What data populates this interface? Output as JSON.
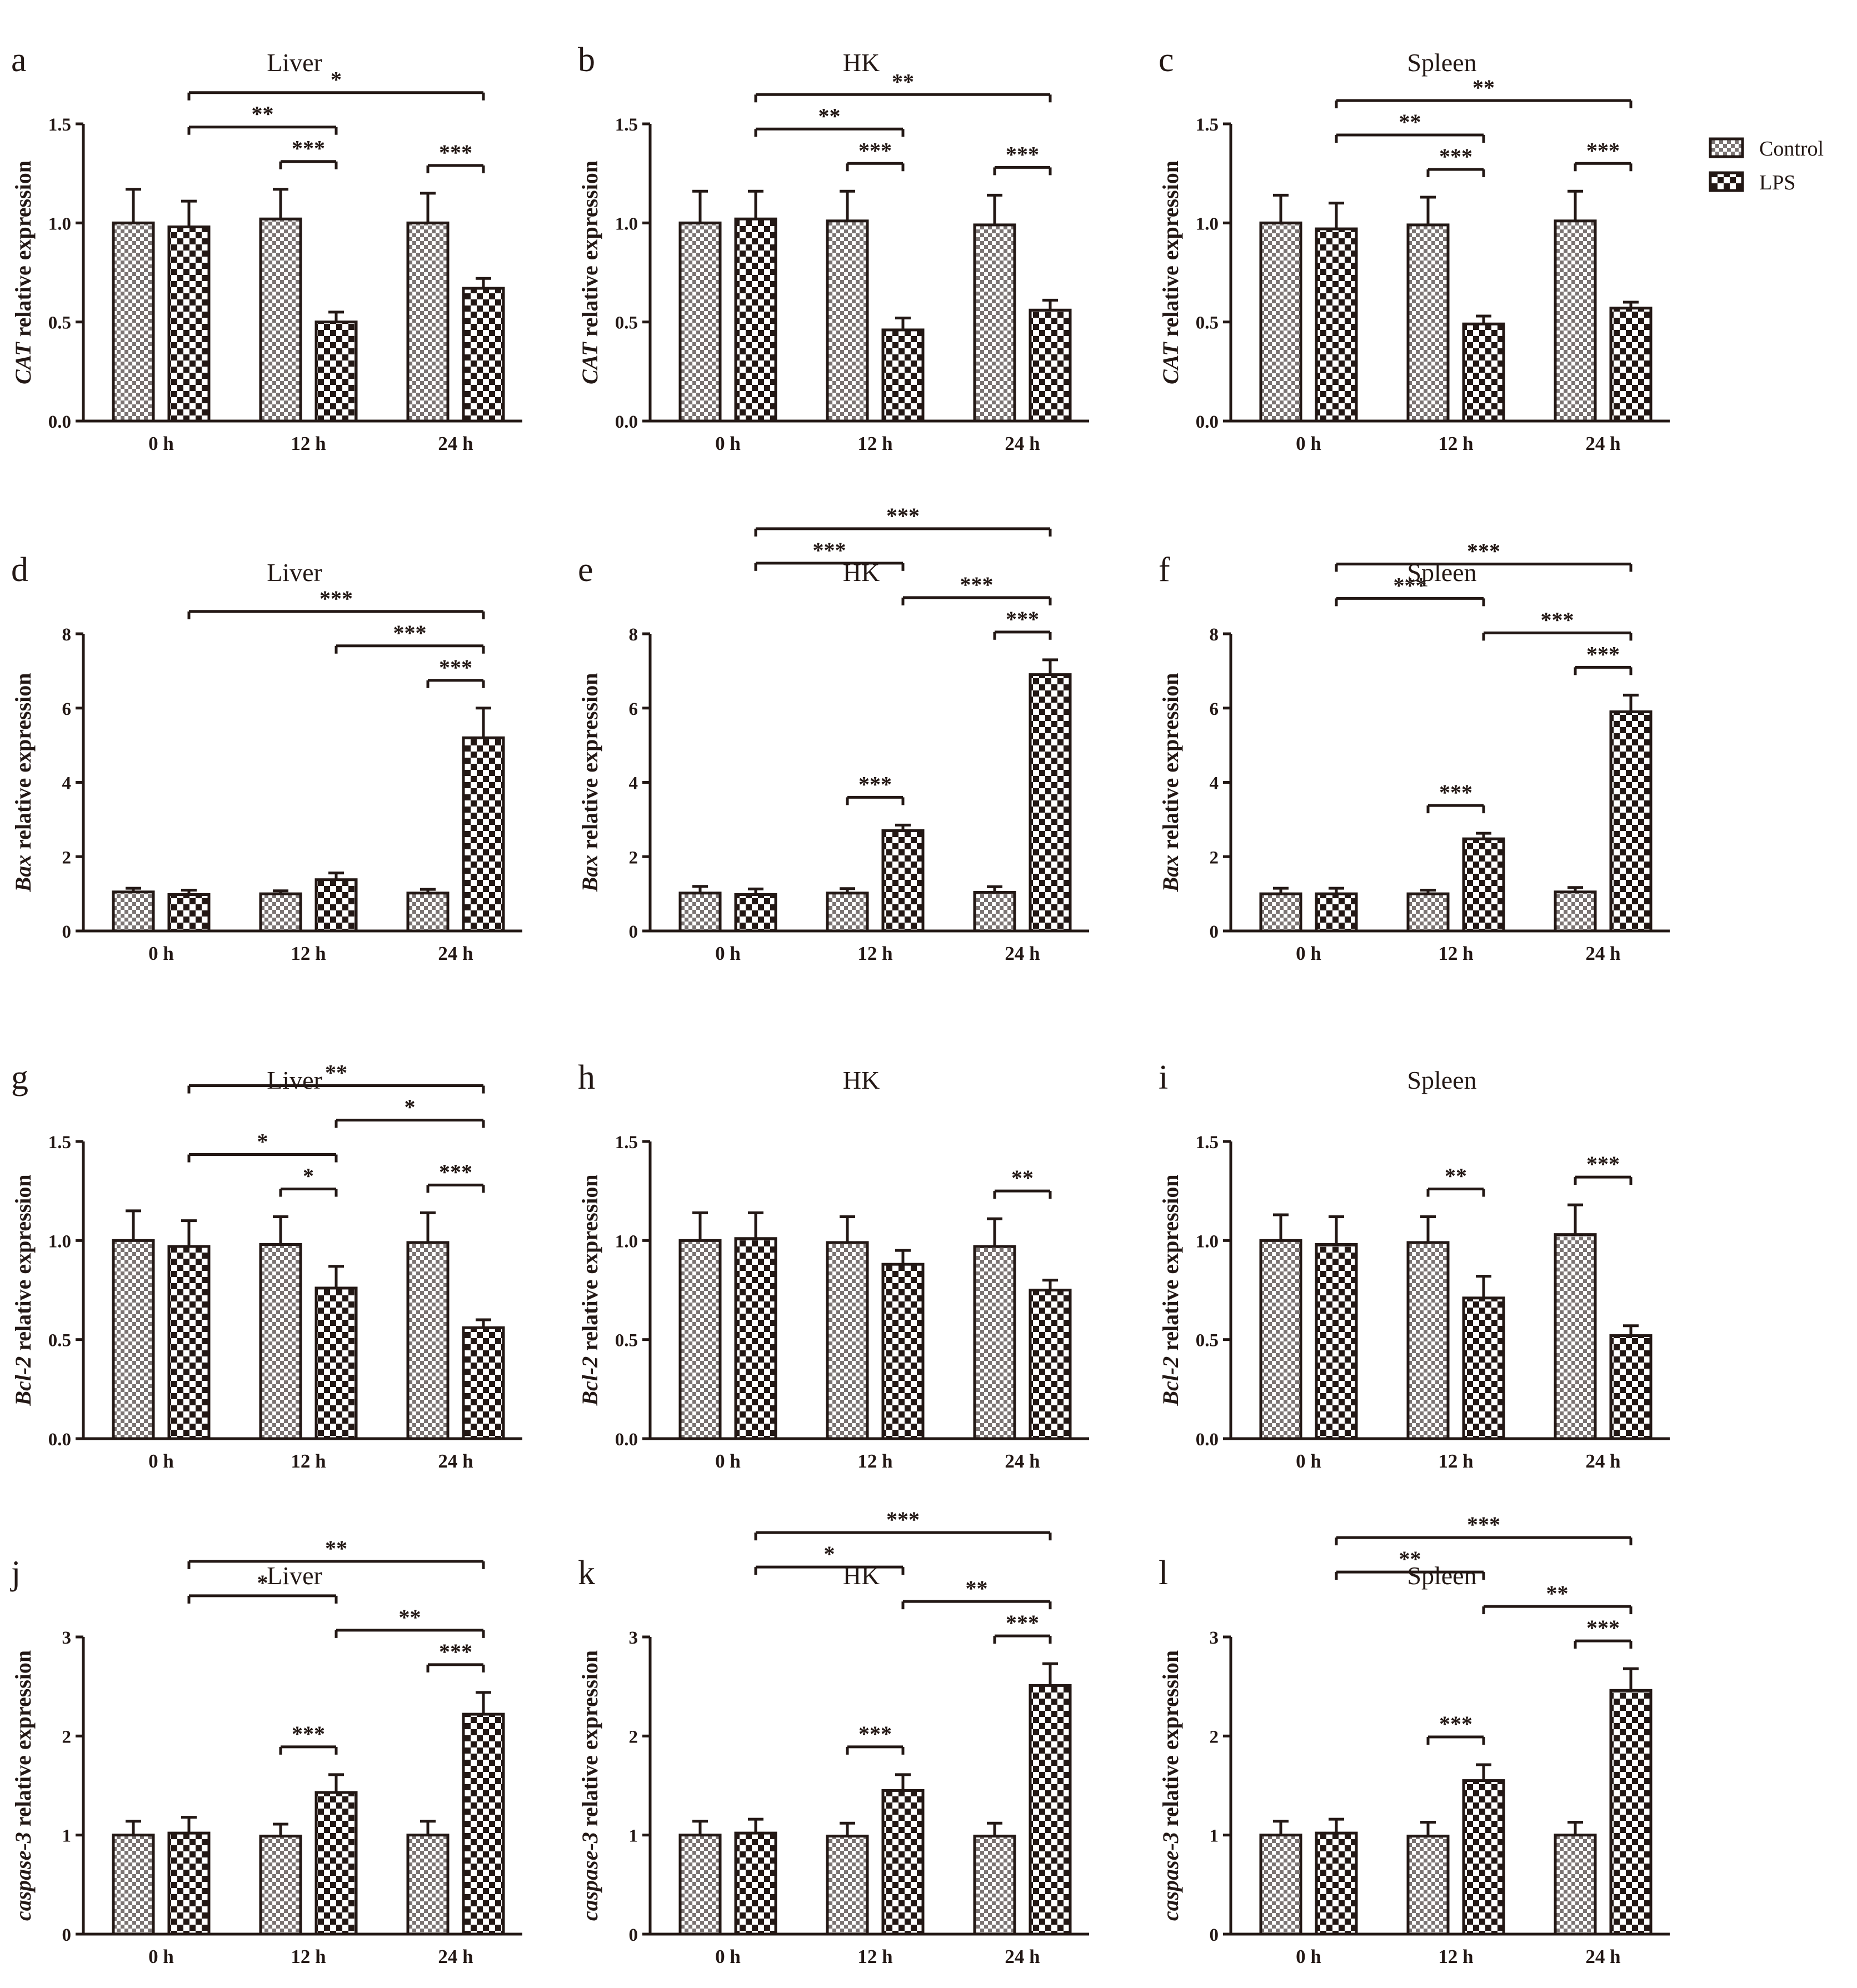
{
  "legend": {
    "control_label": "Control",
    "lps_label": "LPS"
  },
  "colors": {
    "ink": "#231815",
    "bar_fill_base": "#ffffff"
  },
  "chart_data": [
    {
      "letter": "a",
      "type": "bar",
      "title": "Liver",
      "ylabel_gene": "CAT",
      "ylabel_rest": " relative expression",
      "categories": [
        "0 h",
        "12 h",
        "24 h"
      ],
      "ylim": [
        0,
        1.5
      ],
      "yticks": [
        "0.0",
        "0.5",
        "1.0",
        "1.5"
      ],
      "series": [
        {
          "name": "Control",
          "values": [
            1.0,
            1.02,
            1.0
          ],
          "errors": [
            0.17,
            0.15,
            0.15
          ]
        },
        {
          "name": "LPS",
          "values": [
            0.98,
            0.5,
            0.67
          ],
          "errors": [
            0.13,
            0.05,
            0.05
          ]
        }
      ],
      "significance": [
        {
          "from": [
            0,
            1
          ],
          "to": [
            2,
            1
          ],
          "label": "*"
        },
        {
          "from": [
            0,
            1
          ],
          "to": [
            1,
            1
          ],
          "label": "**"
        },
        {
          "from": [
            1,
            0
          ],
          "to": [
            1,
            1
          ],
          "label": "***"
        },
        {
          "from": [
            2,
            0
          ],
          "to": [
            2,
            1
          ],
          "label": "***"
        }
      ]
    },
    {
      "letter": "b",
      "type": "bar",
      "title": "HK",
      "ylabel_gene": "CAT",
      "ylabel_rest": " relative expression",
      "categories": [
        "0 h",
        "12 h",
        "24 h"
      ],
      "ylim": [
        0,
        1.5
      ],
      "yticks": [
        "0.0",
        "0.5",
        "1.0",
        "1.5"
      ],
      "series": [
        {
          "name": "Control",
          "values": [
            1.0,
            1.01,
            0.99
          ],
          "errors": [
            0.16,
            0.15,
            0.15
          ]
        },
        {
          "name": "LPS",
          "values": [
            1.02,
            0.46,
            0.56
          ],
          "errors": [
            0.14,
            0.06,
            0.05
          ]
        }
      ],
      "significance": [
        {
          "from": [
            0,
            1
          ],
          "to": [
            2,
            1
          ],
          "label": "**"
        },
        {
          "from": [
            0,
            1
          ],
          "to": [
            1,
            1
          ],
          "label": "**"
        },
        {
          "from": [
            1,
            0
          ],
          "to": [
            1,
            1
          ],
          "label": "***"
        },
        {
          "from": [
            2,
            0
          ],
          "to": [
            2,
            1
          ],
          "label": "***"
        }
      ]
    },
    {
      "letter": "c",
      "type": "bar",
      "title": "Spleen",
      "ylabel_gene": "CAT",
      "ylabel_rest": " relative expression",
      "categories": [
        "0 h",
        "12 h",
        "24 h"
      ],
      "ylim": [
        0,
        1.5
      ],
      "yticks": [
        "0.0",
        "0.5",
        "1.0",
        "1.5"
      ],
      "series": [
        {
          "name": "Control",
          "values": [
            1.0,
            0.99,
            1.01
          ],
          "errors": [
            0.14,
            0.14,
            0.15
          ]
        },
        {
          "name": "LPS",
          "values": [
            0.97,
            0.49,
            0.57
          ],
          "errors": [
            0.13,
            0.04,
            0.03
          ]
        }
      ],
      "significance": [
        {
          "from": [
            0,
            1
          ],
          "to": [
            2,
            1
          ],
          "label": "**"
        },
        {
          "from": [
            0,
            1
          ],
          "to": [
            1,
            1
          ],
          "label": "**"
        },
        {
          "from": [
            1,
            0
          ],
          "to": [
            1,
            1
          ],
          "label": "***"
        },
        {
          "from": [
            2,
            0
          ],
          "to": [
            2,
            1
          ],
          "label": "***"
        }
      ]
    },
    {
      "letter": "d",
      "type": "bar",
      "title": "Liver",
      "ylabel_gene": "Bax",
      "ylabel_rest": " relative expression",
      "categories": [
        "0 h",
        "12 h",
        "24 h"
      ],
      "ylim": [
        0,
        8
      ],
      "yticks": [
        "0",
        "2",
        "4",
        "6",
        "8"
      ],
      "series": [
        {
          "name": "Control",
          "values": [
            1.05,
            1.0,
            1.02
          ],
          "errors": [
            0.1,
            0.08,
            0.1
          ]
        },
        {
          "name": "LPS",
          "values": [
            0.98,
            1.38,
            5.2
          ],
          "errors": [
            0.12,
            0.18,
            0.8
          ]
        }
      ],
      "significance": [
        {
          "from": [
            0,
            1
          ],
          "to": [
            2,
            1
          ],
          "label": "***"
        },
        {
          "from": [
            1,
            1
          ],
          "to": [
            2,
            1
          ],
          "label": "***"
        },
        {
          "from": [
            2,
            0
          ],
          "to": [
            2,
            1
          ],
          "label": "***"
        }
      ]
    },
    {
      "letter": "e",
      "type": "bar",
      "title": "HK",
      "ylabel_gene": "Bax",
      "ylabel_rest": " relative expression",
      "categories": [
        "0 h",
        "12 h",
        "24 h"
      ],
      "ylim": [
        0,
        8
      ],
      "yticks": [
        "0",
        "2",
        "4",
        "6",
        "8"
      ],
      "series": [
        {
          "name": "Control",
          "values": [
            1.02,
            1.02,
            1.04
          ],
          "errors": [
            0.18,
            0.12,
            0.15
          ]
        },
        {
          "name": "LPS",
          "values": [
            0.98,
            2.7,
            6.9
          ],
          "errors": [
            0.15,
            0.15,
            0.4
          ]
        }
      ],
      "significance": [
        {
          "from": [
            0,
            1
          ],
          "to": [
            2,
            1
          ],
          "label": "***"
        },
        {
          "from": [
            1,
            1
          ],
          "to": [
            2,
            1
          ],
          "label": "***"
        },
        {
          "from": [
            2,
            0
          ],
          "to": [
            2,
            1
          ],
          "label": "***"
        },
        {
          "from": [
            0,
            1
          ],
          "to": [
            1,
            1
          ],
          "label": "***"
        },
        {
          "from": [
            1,
            0
          ],
          "to": [
            1,
            1
          ],
          "label": "***"
        }
      ]
    },
    {
      "letter": "f",
      "type": "bar",
      "title": "Spleen",
      "ylabel_gene": "Bax",
      "ylabel_rest": " relative expression",
      "categories": [
        "0 h",
        "12 h",
        "24 h"
      ],
      "ylim": [
        0,
        8
      ],
      "yticks": [
        "0",
        "2",
        "4",
        "6",
        "8"
      ],
      "series": [
        {
          "name": "Control",
          "values": [
            1.0,
            1.0,
            1.05
          ],
          "errors": [
            0.15,
            0.1,
            0.12
          ]
        },
        {
          "name": "LPS",
          "values": [
            1.0,
            2.48,
            5.9
          ],
          "errors": [
            0.15,
            0.15,
            0.45
          ]
        }
      ],
      "significance": [
        {
          "from": [
            0,
            1
          ],
          "to": [
            2,
            1
          ],
          "label": "***"
        },
        {
          "from": [
            1,
            1
          ],
          "to": [
            2,
            1
          ],
          "label": "***"
        },
        {
          "from": [
            2,
            0
          ],
          "to": [
            2,
            1
          ],
          "label": "***"
        },
        {
          "from": [
            0,
            1
          ],
          "to": [
            1,
            1
          ],
          "label": "***"
        },
        {
          "from": [
            1,
            0
          ],
          "to": [
            1,
            1
          ],
          "label": "***"
        }
      ]
    },
    {
      "letter": "g",
      "type": "bar",
      "title": "Liver",
      "ylabel_gene": "Bcl-2",
      "ylabel_rest": " relative expression",
      "categories": [
        "0 h",
        "12 h",
        "24 h"
      ],
      "ylim": [
        0,
        1.5
      ],
      "yticks": [
        "0.0",
        "0.5",
        "1.0",
        "1.5"
      ],
      "series": [
        {
          "name": "Control",
          "values": [
            1.0,
            0.98,
            0.99
          ],
          "errors": [
            0.15,
            0.14,
            0.15
          ]
        },
        {
          "name": "LPS",
          "values": [
            0.97,
            0.76,
            0.56
          ],
          "errors": [
            0.13,
            0.11,
            0.04
          ]
        }
      ],
      "significance": [
        {
          "from": [
            0,
            1
          ],
          "to": [
            2,
            1
          ],
          "label": "**"
        },
        {
          "from": [
            0,
            1
          ],
          "to": [
            1,
            1
          ],
          "label": "*"
        },
        {
          "from": [
            1,
            1
          ],
          "to": [
            2,
            1
          ],
          "label": "*"
        },
        {
          "from": [
            1,
            0
          ],
          "to": [
            1,
            1
          ],
          "label": "*"
        },
        {
          "from": [
            2,
            0
          ],
          "to": [
            2,
            1
          ],
          "label": "***"
        }
      ]
    },
    {
      "letter": "h",
      "type": "bar",
      "title": "HK",
      "ylabel_gene": "Bcl-2",
      "ylabel_rest": " relative expression",
      "categories": [
        "0 h",
        "12 h",
        "24 h"
      ],
      "ylim": [
        0,
        1.5
      ],
      "yticks": [
        "0.0",
        "0.5",
        "1.0",
        "1.5"
      ],
      "series": [
        {
          "name": "Control",
          "values": [
            1.0,
            0.99,
            0.97
          ],
          "errors": [
            0.14,
            0.13,
            0.14
          ]
        },
        {
          "name": "LPS",
          "values": [
            1.01,
            0.88,
            0.75
          ],
          "errors": [
            0.13,
            0.07,
            0.05
          ]
        }
      ],
      "significance": [
        {
          "from": [
            2,
            0
          ],
          "to": [
            2,
            1
          ],
          "label": "**"
        }
      ]
    },
    {
      "letter": "i",
      "type": "bar",
      "title": "Spleen",
      "ylabel_gene": "Bcl-2",
      "ylabel_rest": " relative expression",
      "categories": [
        "0 h",
        "12 h",
        "24 h"
      ],
      "ylim": [
        0,
        1.5
      ],
      "yticks": [
        "0.0",
        "0.5",
        "1.0",
        "1.5"
      ],
      "series": [
        {
          "name": "Control",
          "values": [
            1.0,
            0.99,
            1.03
          ],
          "errors": [
            0.13,
            0.13,
            0.15
          ]
        },
        {
          "name": "LPS",
          "values": [
            0.98,
            0.71,
            0.52
          ],
          "errors": [
            0.14,
            0.11,
            0.05
          ]
        }
      ],
      "significance": [
        {
          "from": [
            1,
            0
          ],
          "to": [
            1,
            1
          ],
          "label": "**"
        },
        {
          "from": [
            2,
            0
          ],
          "to": [
            2,
            1
          ],
          "label": "***"
        }
      ]
    },
    {
      "letter": "j",
      "type": "bar",
      "title": "Liver",
      "ylabel_gene": "caspase-3",
      "ylabel_rest": " relative expression",
      "categories": [
        "0 h",
        "12 h",
        "24 h"
      ],
      "ylim": [
        0,
        3
      ],
      "yticks": [
        "0",
        "1",
        "2",
        "3"
      ],
      "series": [
        {
          "name": "Control",
          "values": [
            1.0,
            0.99,
            1.0
          ],
          "errors": [
            0.14,
            0.12,
            0.14
          ]
        },
        {
          "name": "LPS",
          "values": [
            1.02,
            1.43,
            2.22
          ],
          "errors": [
            0.16,
            0.18,
            0.22
          ]
        }
      ],
      "significance": [
        {
          "from": [
            0,
            1
          ],
          "to": [
            2,
            1
          ],
          "label": "**"
        },
        {
          "from": [
            1,
            1
          ],
          "to": [
            2,
            1
          ],
          "label": "**"
        },
        {
          "from": [
            2,
            0
          ],
          "to": [
            2,
            1
          ],
          "label": "***"
        },
        {
          "from": [
            0,
            1
          ],
          "to": [
            1,
            1
          ],
          "label": "*"
        },
        {
          "from": [
            1,
            0
          ],
          "to": [
            1,
            1
          ],
          "label": "***"
        }
      ]
    },
    {
      "letter": "k",
      "type": "bar",
      "title": "HK",
      "ylabel_gene": "caspase-3",
      "ylabel_rest": " relative expression",
      "categories": [
        "0 h",
        "12 h",
        "24 h"
      ],
      "ylim": [
        0,
        3
      ],
      "yticks": [
        "0",
        "1",
        "2",
        "3"
      ],
      "series": [
        {
          "name": "Control",
          "values": [
            1.0,
            0.99,
            0.99
          ],
          "errors": [
            0.14,
            0.13,
            0.13
          ]
        },
        {
          "name": "LPS",
          "values": [
            1.02,
            1.45,
            2.51
          ],
          "errors": [
            0.14,
            0.16,
            0.22
          ]
        }
      ],
      "significance": [
        {
          "from": [
            0,
            1
          ],
          "to": [
            2,
            1
          ],
          "label": "***"
        },
        {
          "from": [
            1,
            1
          ],
          "to": [
            2,
            1
          ],
          "label": "**"
        },
        {
          "from": [
            2,
            0
          ],
          "to": [
            2,
            1
          ],
          "label": "***"
        },
        {
          "from": [
            0,
            1
          ],
          "to": [
            1,
            1
          ],
          "label": "*"
        },
        {
          "from": [
            1,
            0
          ],
          "to": [
            1,
            1
          ],
          "label": "***"
        }
      ]
    },
    {
      "letter": "l",
      "type": "bar",
      "title": "Spleen",
      "ylabel_gene": "caspase-3",
      "ylabel_rest": " relative expression",
      "categories": [
        "0 h",
        "12 h",
        "24 h"
      ],
      "ylim": [
        0,
        3
      ],
      "yticks": [
        "0",
        "1",
        "2",
        "3"
      ],
      "series": [
        {
          "name": "Control",
          "values": [
            1.0,
            0.99,
            1.0
          ],
          "errors": [
            0.14,
            0.14,
            0.13
          ]
        },
        {
          "name": "LPS",
          "values": [
            1.02,
            1.55,
            2.46
          ],
          "errors": [
            0.14,
            0.16,
            0.22
          ]
        }
      ],
      "significance": [
        {
          "from": [
            0,
            1
          ],
          "to": [
            2,
            1
          ],
          "label": "***"
        },
        {
          "from": [
            1,
            1
          ],
          "to": [
            2,
            1
          ],
          "label": "**"
        },
        {
          "from": [
            2,
            0
          ],
          "to": [
            2,
            1
          ],
          "label": "***"
        },
        {
          "from": [
            0,
            1
          ],
          "to": [
            1,
            1
          ],
          "label": "**"
        },
        {
          "from": [
            1,
            0
          ],
          "to": [
            1,
            1
          ],
          "label": "***"
        }
      ]
    }
  ]
}
